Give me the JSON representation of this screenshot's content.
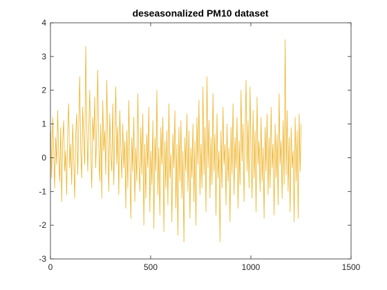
{
  "chart_data": {
    "type": "line",
    "title": "deseasonalized PM10 dataset",
    "xlabel": "",
    "ylabel": "",
    "xlim": [
      0,
      1500
    ],
    "ylim": [
      -3,
      4
    ],
    "xticks": [
      0,
      500,
      1000,
      1500
    ],
    "yticks": [
      -3,
      -2,
      -1,
      0,
      1,
      2,
      3,
      4
    ],
    "grid": false,
    "legend": "none",
    "box": true,
    "series": [
      {
        "color": "#EDB120",
        "x_start": 1,
        "x_step": 5,
        "values": [
          0.8,
          -0.6,
          1.2,
          0.3,
          -0.9,
          0.6,
          -0.2,
          1.4,
          0.1,
          -0.7,
          0.9,
          -1.3,
          0.5,
          1.1,
          -0.4,
          0.2,
          -1.1,
          0.8,
          1.6,
          -0.3,
          0.4,
          -0.8,
          1.0,
          0.0,
          -1.2,
          0.7,
          1.3,
          -0.5,
          0.9,
          2.4,
          0.2,
          -0.6,
          1.5,
          0.6,
          -0.2,
          3.3,
          1.1,
          -0.4,
          0.8,
          2.0,
          0.3,
          -0.9,
          1.2,
          0.5,
          1.8,
          -0.3,
          0.9,
          2.6,
          0.4,
          -0.7,
          1.0,
          -1.2,
          1.7,
          0.2,
          0.8,
          -0.5,
          2.3,
          0.6,
          -1.0,
          1.3,
          0.1,
          -0.4,
          1.6,
          -0.8,
          0.7,
          2.1,
          -0.2,
          0.9,
          -1.1,
          1.4,
          0.3,
          -0.6,
          1.0,
          -0.3,
          0.5,
          -1.5,
          0.8,
          -0.9,
          1.7,
          0.0,
          -1.8,
          0.6,
          -0.4,
          1.2,
          -1.3,
          0.3,
          -0.7,
          1.9,
          -0.1,
          -1.0,
          0.9,
          -0.5,
          1.3,
          -2.0,
          0.4,
          -1.2,
          0.7,
          -0.3,
          1.5,
          -1.6,
          0.2,
          -0.8,
          1.1,
          -2.1,
          0.6,
          -0.4,
          2.0,
          -1.1,
          0.3,
          -1.7,
          0.9,
          -0.2,
          1.2,
          -2.2,
          0.5,
          -0.9,
          0.8,
          -1.4,
          1.6,
          -0.6,
          0.1,
          -1.9,
          0.7,
          -0.3,
          1.4,
          -1.5,
          0.4,
          -2.3,
          0.9,
          -0.7,
          1.1,
          -1.2,
          0.2,
          -2.5,
          0.6,
          -0.4,
          1.3,
          -1.0,
          0.8,
          -1.8,
          0.3,
          -0.6,
          1.0,
          -1.3,
          0.5,
          -2.0,
          1.2,
          -0.2,
          1.7,
          -1.1,
          0.4,
          -0.9,
          2.1,
          -0.5,
          0.9,
          -1.6,
          2.4,
          -0.3,
          1.1,
          -1.2,
          0.6,
          -0.8,
          1.9,
          -0.4,
          0.7,
          -1.7,
          1.3,
          -0.6,
          0.2,
          -2.5,
          0.8,
          -0.9,
          1.5,
          -0.2,
          0.4,
          -1.4,
          1.0,
          -0.7,
          0.3,
          -1.9,
          0.9,
          -0.5,
          1.6,
          -1.1,
          0.6,
          -0.3,
          1.2,
          -1.5,
          0.5,
          -0.8,
          2.0,
          -0.1,
          1.0,
          -1.3,
          0.7,
          2.3,
          -0.4,
          1.1,
          -0.9,
          2.1,
          0.2,
          -1.2,
          1.4,
          -0.6,
          0.8,
          -1.6,
          1.8,
          -0.2,
          0.5,
          -1.0,
          1.2,
          -0.7,
          0.3,
          -1.8,
          0.9,
          -0.4,
          1.3,
          -1.1,
          0.6,
          -0.9,
          1.5,
          -0.3,
          0.4,
          -1.7,
          1.0,
          -0.6,
          0.7,
          -1.4,
          1.9,
          -0.2,
          0.5,
          -1.2,
          1.1,
          -0.8,
          3.5,
          -0.5,
          1.4,
          -1.0,
          0.6,
          -1.6,
          0.9,
          -0.3,
          0.2,
          -1.9,
          1.2,
          -0.7,
          0.8,
          -1.8,
          1.3,
          -0.4,
          1.0
        ]
      }
    ]
  }
}
